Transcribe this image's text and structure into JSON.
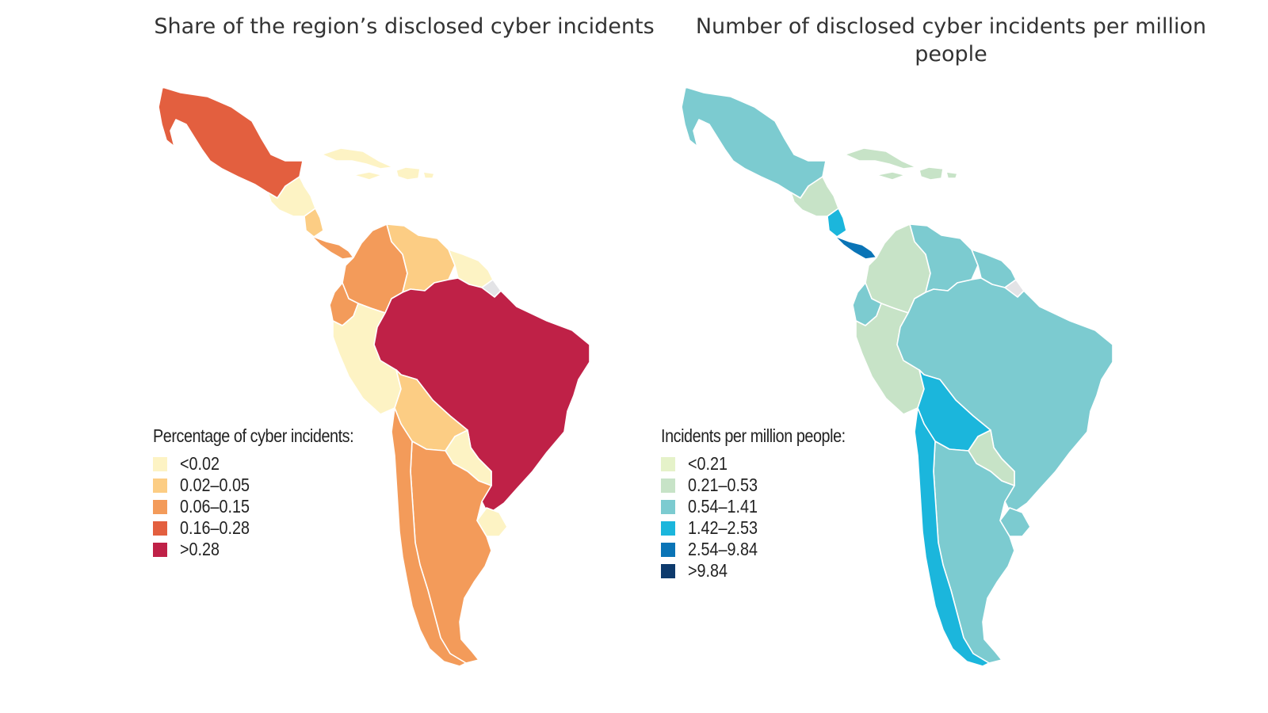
{
  "maps": [
    {
      "title": "Share of the region’s disclosed cyber incidents",
      "legend_title": "Percentage of cyber incidents:",
      "legend": [
        {
          "label": "<0.02",
          "color": "#fdf3c4"
        },
        {
          "label": "0.02–0.05",
          "color": "#fccd84"
        },
        {
          "label": "0.06–0.15",
          "color": "#f39b5a"
        },
        {
          "label": "0.16–0.28",
          "color": "#e35f3f"
        },
        {
          "label": ">0.28",
          "color": "#bf2147"
        }
      ],
      "regions": {
        "mexico": "0.16–0.28",
        "central_america_nw": "<0.02",
        "central_america_se": "0.02–0.05",
        "panama": "0.06–0.15",
        "colombia": "0.06–0.15",
        "venezuela": "0.02–0.05",
        "guianas": "<0.02",
        "ecuador": "0.06–0.15",
        "peru": "<0.02",
        "brazil": ">0.28",
        "bolivia": "0.02–0.05",
        "paraguay": "<0.02",
        "argentina": "0.06–0.15",
        "chile": "0.06–0.15",
        "uruguay": "<0.02",
        "caribbean": "<0.02"
      }
    },
    {
      "title": "Number of disclosed cyber incidents per million people",
      "legend_title": "Incidents per million people:",
      "legend": [
        {
          "label": "<0.21",
          "color": "#e5f2c9"
        },
        {
          "label": "0.21–0.53",
          "color": "#c7e3c7"
        },
        {
          "label": "0.54–1.41",
          "color": "#7ccbd0"
        },
        {
          "label": "1.42–2.53",
          "color": "#1bb6dc"
        },
        {
          "label": "2.54–9.84",
          "color": "#0a74b6"
        },
        {
          "label": ">9.84",
          "color": "#0d3a6c"
        }
      ],
      "regions": {
        "mexico": "0.54–1.41",
        "central_america_nw": "0.21–0.53",
        "central_america_se": "1.42–2.53",
        "panama": "2.54–9.84",
        "colombia": "0.21–0.53",
        "venezuela": "0.54–1.41",
        "guianas": "0.54–1.41",
        "ecuador": "0.54–1.41",
        "peru": "0.21–0.53",
        "brazil": "0.54–1.41",
        "bolivia": "1.42–2.53",
        "paraguay": "0.21–0.53",
        "argentina": "0.54–1.41",
        "chile": "1.42–2.53",
        "uruguay": "0.54–1.41",
        "caribbean": "0.21–0.53"
      }
    }
  ],
  "no_data_color": "#e3e3e6"
}
